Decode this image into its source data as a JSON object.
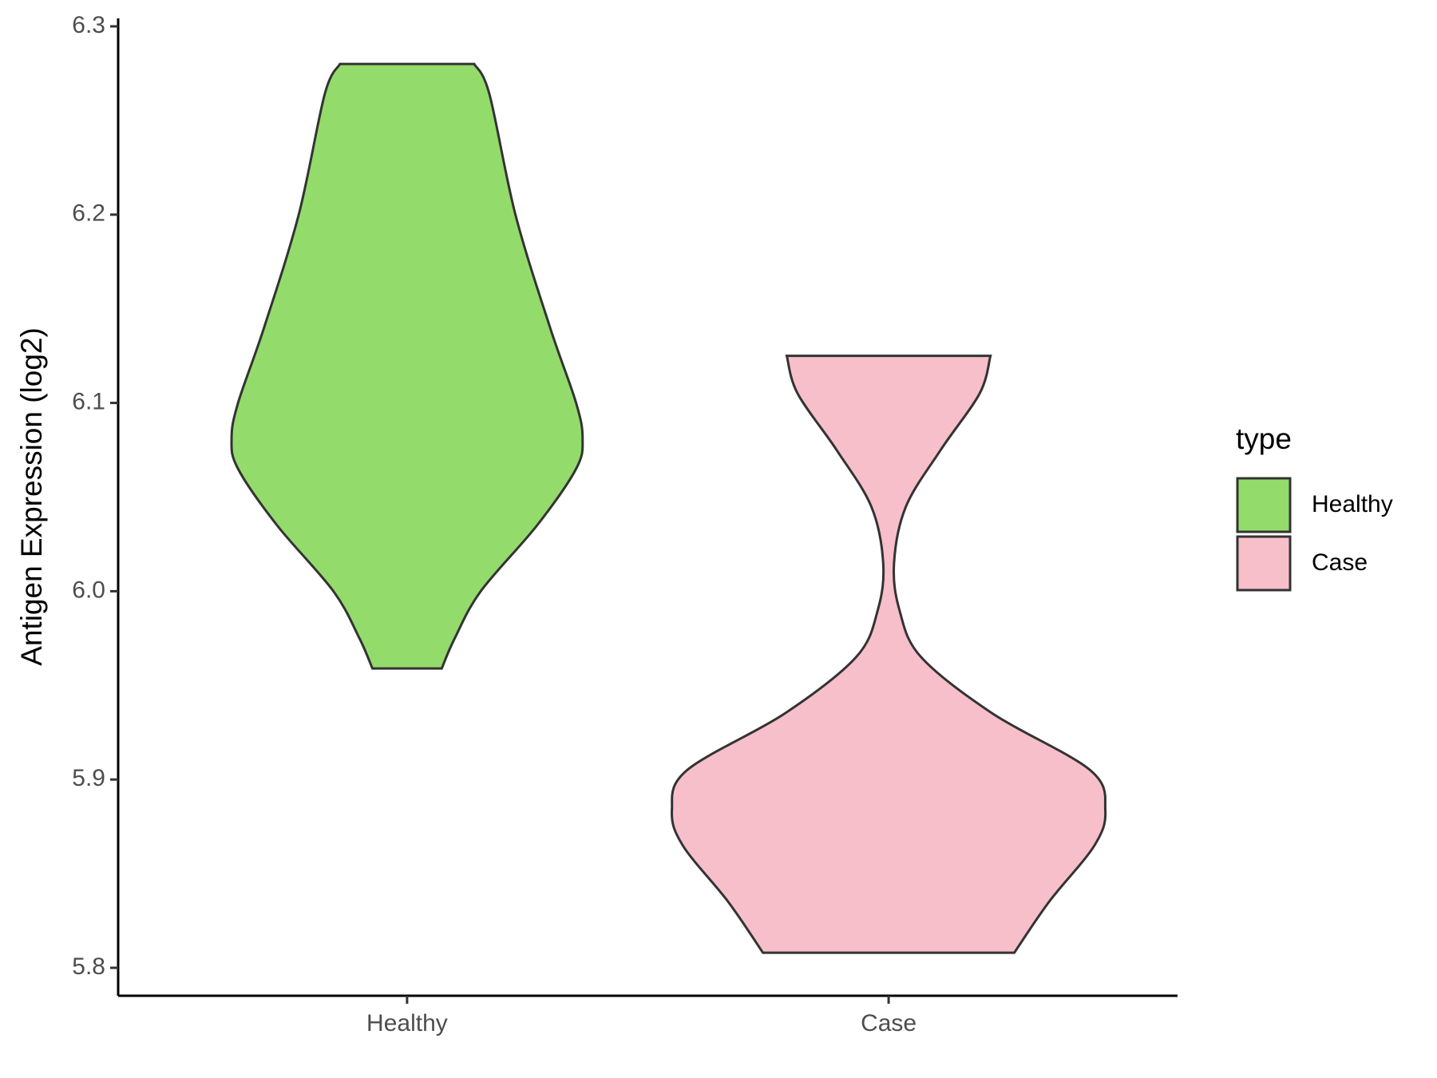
{
  "chart_data": {
    "type": "violin",
    "y_label": "Antigen Expression (log2)",
    "categories": [
      "Healthy",
      "Case"
    ],
    "legend_title": "type",
    "ylim": [
      5.8,
      6.3
    ],
    "yticks": [
      5.8,
      5.9,
      {
        "value": 6,
        "label": "6.0"
      },
      6.1,
      6.2,
      6.3
    ],
    "series": [
      {
        "name": "Healthy",
        "color": "#93dc6b",
        "y": [
          6.28,
          6.264,
          6.2,
          6.14,
          6.1,
          6.081,
          6.065,
          6.035,
          6.0,
          5.975,
          5.959
        ],
        "widths": [
          0.31,
          0.38,
          0.5,
          0.66,
          0.78,
          0.81,
          0.78,
          0.6,
          0.34,
          0.22,
          0.16
        ]
      },
      {
        "name": "Case",
        "color": "#f7bfca",
        "y": [
          6.125,
          6.105,
          6.075,
          6.045,
          6.015,
          5.99,
          5.965,
          5.935,
          5.905,
          5.884,
          5.865,
          5.835,
          5.808
        ],
        "widths": [
          0.47,
          0.42,
          0.24,
          0.08,
          0.025,
          0.05,
          0.15,
          0.48,
          0.93,
          1.0,
          0.95,
          0.74,
          0.58
        ]
      }
    ]
  }
}
